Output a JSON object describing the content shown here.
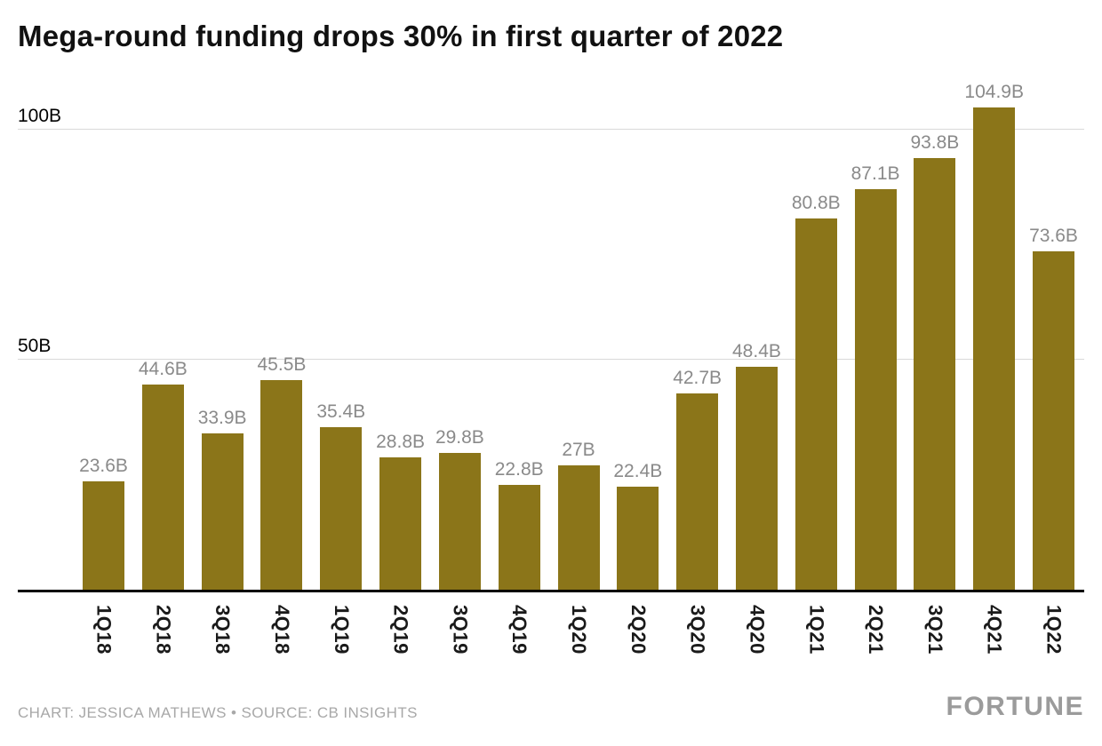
{
  "title": "Mega-round funding drops 30% in first quarter of 2022",
  "footer": {
    "credit": "CHART: JESSICA MATHEWS • SOURCE: CB INSIGHTS",
    "brand": "FORTUNE"
  },
  "colors": {
    "bar": "#8b7519",
    "value_label": "#8a8a8a",
    "grid": "#d9d9d9",
    "axis": "#000000"
  },
  "chart_data": {
    "type": "bar",
    "title": "Mega-round funding drops 30% in first quarter of 2022",
    "categories": [
      "1Q18",
      "2Q18",
      "3Q18",
      "4Q18",
      "1Q19",
      "2Q19",
      "3Q19",
      "4Q19",
      "1Q20",
      "2Q20",
      "3Q20",
      "4Q20",
      "1Q21",
      "2Q21",
      "3Q21",
      "4Q21",
      "1Q22"
    ],
    "values": [
      23.6,
      44.6,
      33.9,
      45.5,
      35.4,
      28.8,
      29.8,
      22.8,
      27,
      22.4,
      42.7,
      48.4,
      80.8,
      87.1,
      93.8,
      104.9,
      73.6
    ],
    "value_labels": [
      "23.6B",
      "44.6B",
      "33.9B",
      "45.5B",
      "35.4B",
      "28.8B",
      "29.8B",
      "22.8B",
      "27B",
      "22.4B",
      "42.7B",
      "48.4B",
      "80.8B",
      "87.1B",
      "93.8B",
      "104.9B",
      "73.6B"
    ],
    "xlabel": "",
    "ylabel": "",
    "yticks": [
      {
        "value": 50,
        "label": "50B"
      },
      {
        "value": 100,
        "label": "100B"
      }
    ],
    "ylim": [
      0,
      112
    ],
    "grid": true,
    "legend": false,
    "bar_color": "#8b7519"
  }
}
